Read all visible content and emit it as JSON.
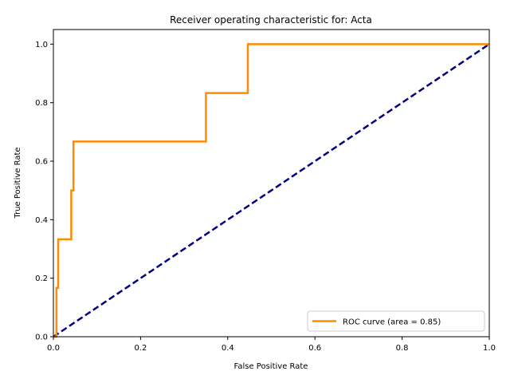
{
  "chart_data": {
    "type": "line",
    "title": "Receiver operating characteristic for: Acta",
    "xlabel": "False Positive Rate",
    "ylabel": "True Positive Rate",
    "xlim": [
      0.0,
      1.0
    ],
    "ylim": [
      0.0,
      1.05
    ],
    "xticks": [
      "0.0",
      "0.2",
      "0.4",
      "0.6",
      "0.8",
      "1.0"
    ],
    "yticks": [
      "0.0",
      "0.2",
      "0.4",
      "0.6",
      "0.8",
      "1.0"
    ],
    "grid": false,
    "legend_position": "lower-right",
    "series": [
      {
        "name": "ROC curve (area = 0.85)",
        "color": "#ff8c00",
        "style": "solid",
        "points": [
          [
            0.0,
            0.0
          ],
          [
            0.007,
            0.0
          ],
          [
            0.007,
            0.167
          ],
          [
            0.011,
            0.167
          ],
          [
            0.011,
            0.333
          ],
          [
            0.041,
            0.333
          ],
          [
            0.041,
            0.5
          ],
          [
            0.046,
            0.5
          ],
          [
            0.046,
            0.667
          ],
          [
            0.35,
            0.667
          ],
          [
            0.35,
            0.833
          ],
          [
            0.446,
            0.833
          ],
          [
            0.446,
            1.0
          ],
          [
            1.0,
            1.0
          ]
        ]
      },
      {
        "color": "#000080",
        "style": "dashed",
        "points": [
          [
            0.0,
            0.0
          ],
          [
            1.0,
            1.0
          ]
        ]
      }
    ]
  }
}
